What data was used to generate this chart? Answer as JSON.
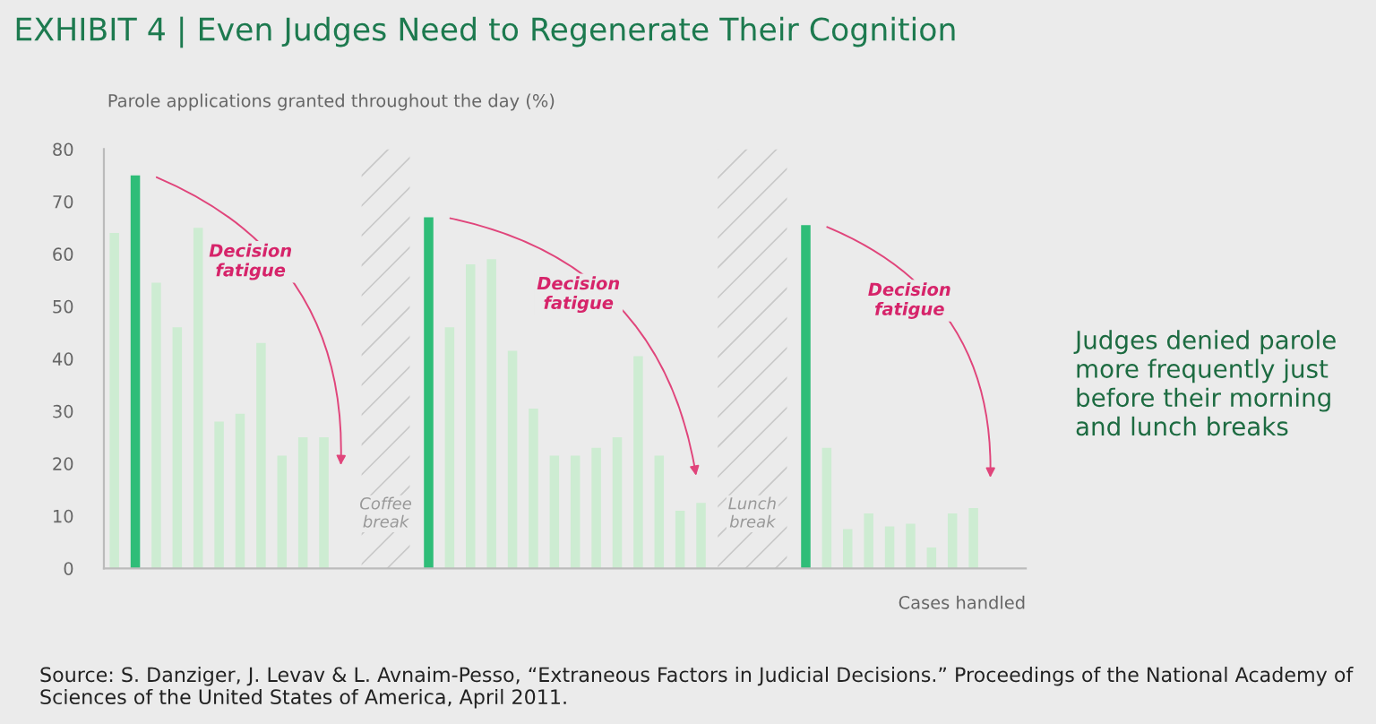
{
  "chart_data": {
    "type": "bar",
    "title": "EXHIBIT 4 | Even Judges Need to Regenerate Their Cognition",
    "ylabel": "Parole applications granted throughout the day (%)",
    "xlabel": "Cases handled",
    "categories": [
      null,
      null,
      null,
      null,
      null,
      null,
      null,
      null,
      null,
      null,
      null,
      null,
      null,
      null,
      null,
      null,
      null,
      null,
      null,
      null,
      null,
      null,
      null,
      null,
      null,
      null,
      null,
      null,
      null,
      null,
      null,
      null,
      null,
      null,
      null,
      null,
      null,
      null,
      null,
      null,
      null,
      null,
      null,
      null
    ],
    "values": [
      64,
      75,
      54.5,
      46,
      65,
      28,
      29.5,
      43,
      21.5,
      25,
      25,
      0,
      null,
      null,
      null,
      67,
      46,
      58,
      59,
      41.5,
      30.5,
      21.5,
      21.5,
      23,
      25,
      40.5,
      21.5,
      11,
      12.5,
      null,
      null,
      null,
      null,
      65.5,
      23,
      7.5,
      10.5,
      8,
      8.5,
      4,
      10.5,
      11.5,
      0,
      null
    ],
    "colors": [
      "#cdecd2",
      "#2fbd78",
      "#cdecd2",
      "#cdecd2",
      "#cdecd2",
      "#cdecd2",
      "#cdecd2",
      "#cdecd2",
      "#cdecd2",
      "#cdecd2",
      "#cdecd2",
      "#cdecd2",
      "#cdecd2",
      "#cdecd2",
      "#cdecd2",
      "#2fbd78",
      "#cdecd2",
      "#cdecd2",
      "#cdecd2",
      "#cdecd2",
      "#cdecd2",
      "#cdecd2",
      "#cdecd2",
      "#cdecd2",
      "#cdecd2",
      "#cdecd2",
      "#cdecd2",
      "#cdecd2",
      "#cdecd2",
      "#cdecd2",
      "#cdecd2",
      "#cdecd2",
      "#cdecd2",
      "#2fbd78",
      "#cdecd2",
      "#cdecd2",
      "#cdecd2",
      "#cdecd2",
      "#cdecd2",
      "#cdecd2",
      "#cdecd2",
      "#cdecd2",
      "#cdecd2",
      "#cdecd2"
    ],
    "ylim": [
      0,
      80
    ],
    "yticks": [
      0,
      10,
      20,
      30,
      40,
      50,
      60,
      70,
      80
    ],
    "grid": false,
    "legend": false,
    "annotations": [
      "Decision\nfatigue",
      "Decision\nfatigue",
      "Decision\nfatigue",
      "Coffee\nbreak",
      "Lunch\nbreak",
      "Judges denied parole\nmore frequently just\nbefore their morning\nand lunch breaks",
      "Source: S. Danziger, J. Levav & L. Avnaim-Pesso, “Extraneous Factors in Judicial Decisions.” Proceedings of the National Academy of Sciences of the United States of America, April 2011."
    ]
  }
}
